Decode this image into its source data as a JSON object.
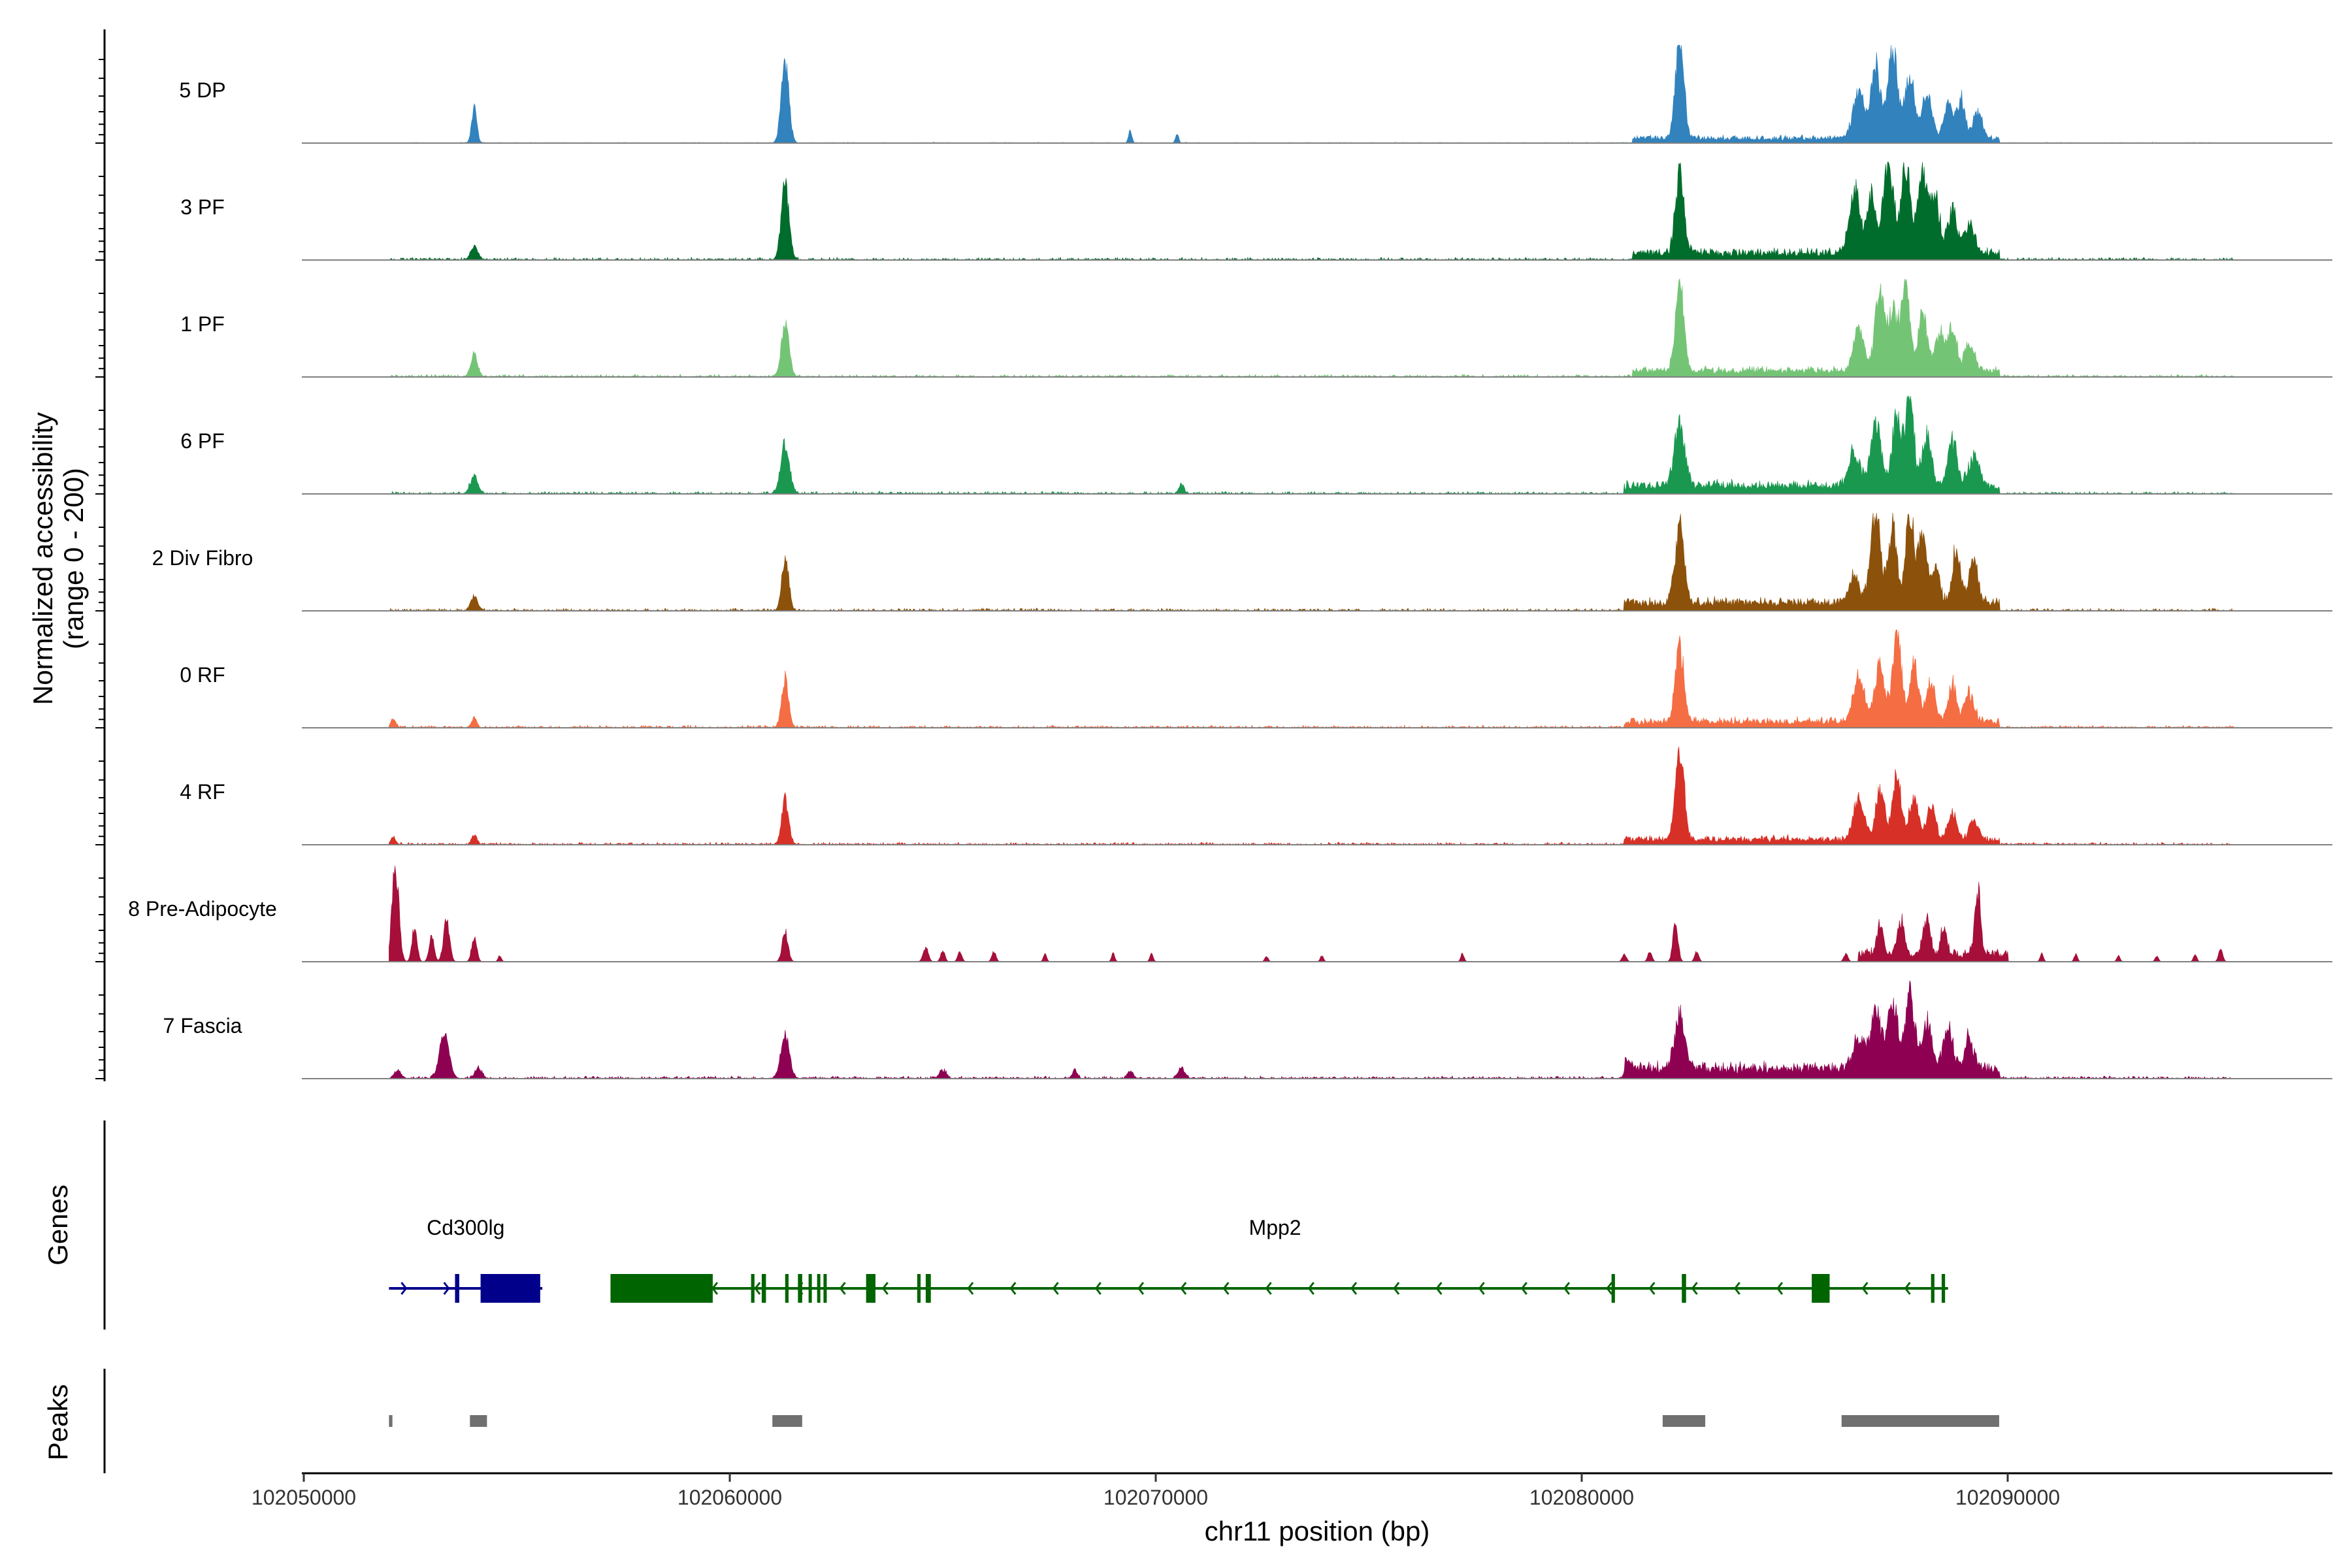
{
  "chart_data": {
    "type": "area",
    "title": "",
    "ylabel": "Normalized accessibility",
    "ylabel_range": "(range 0 - 200)",
    "xlabel": "chr11 position (bp)",
    "x_range": [
      102050000,
      102097800
    ],
    "x_ticks": [
      "102050000",
      "102060000",
      "102070000",
      "102080000",
      "102090000"
    ],
    "y_range": [
      0,
      200
    ],
    "genes_panel_label": "Genes",
    "peaks_panel_label": "Peaks",
    "tracks": [
      {
        "name": "5 DP",
        "color": "#3182BD",
        "noise": 0.01,
        "peaks": [
          [
            102054000,
            0.35,
            60
          ],
          [
            102061300,
            0.8,
            90
          ],
          [
            102069400,
            0.12,
            40
          ],
          [
            102070500,
            0.08,
            40
          ],
          [
            102082300,
            1.0,
            100
          ],
          [
            102086500,
            0.45,
            130
          ],
          [
            102086900,
            0.72,
            110
          ],
          [
            102087300,
            0.88,
            120
          ],
          [
            102087700,
            0.65,
            110
          ],
          [
            102088100,
            0.45,
            120
          ],
          [
            102088600,
            0.35,
            100
          ],
          [
            102088900,
            0.4,
            100
          ],
          [
            102089300,
            0.28,
            100
          ]
        ],
        "base": [
          [
            102081200,
            102089800,
            0.05
          ]
        ]
      },
      {
        "name": "3 PF",
        "color": "#006D2C",
        "noise": 0.03,
        "peaks": [
          [
            102054000,
            0.15,
            80
          ],
          [
            102061300,
            0.75,
            90
          ],
          [
            102082300,
            0.8,
            100
          ],
          [
            102086400,
            0.65,
            120
          ],
          [
            102086800,
            0.58,
            110
          ],
          [
            102087200,
            1.0,
            110
          ],
          [
            102087600,
            0.9,
            110
          ],
          [
            102088000,
            0.82,
            110
          ],
          [
            102088300,
            0.55,
            110
          ],
          [
            102088700,
            0.45,
            100
          ],
          [
            102089100,
            0.28,
            120
          ]
        ],
        "base": [
          [
            102081200,
            102089800,
            0.07
          ]
        ]
      },
      {
        "name": "1 PF",
        "color": "#74C476",
        "noise": 0.03,
        "peaks": [
          [
            102054000,
            0.22,
            80
          ],
          [
            102061300,
            0.55,
            90
          ],
          [
            102082300,
            0.9,
            100
          ],
          [
            102086500,
            0.45,
            120
          ],
          [
            102087000,
            0.82,
            110
          ],
          [
            102087300,
            0.6,
            100
          ],
          [
            102087600,
            1.0,
            100
          ],
          [
            102088000,
            0.55,
            110
          ],
          [
            102088400,
            0.38,
            100
          ],
          [
            102088700,
            0.45,
            100
          ],
          [
            102089100,
            0.28,
            110
          ]
        ],
        "base": [
          [
            102081200,
            102089800,
            0.06
          ]
        ]
      },
      {
        "name": "6 PF",
        "color": "#1A9850",
        "noise": 0.03,
        "peaks": [
          [
            102054000,
            0.18,
            90
          ],
          [
            102061300,
            0.5,
            100
          ],
          [
            102070600,
            0.1,
            60
          ],
          [
            102082300,
            0.65,
            120
          ],
          [
            102086400,
            0.35,
            130
          ],
          [
            102086900,
            0.65,
            120
          ],
          [
            102087400,
            0.7,
            110
          ],
          [
            102087700,
            1.0,
            90
          ],
          [
            102088100,
            0.5,
            110
          ],
          [
            102088700,
            0.45,
            110
          ],
          [
            102089200,
            0.3,
            120
          ]
        ],
        "base": [
          [
            102081000,
            102089800,
            0.08
          ]
        ]
      },
      {
        "name": "2 Div Fibro",
        "color": "#8C510A",
        "noise": 0.03,
        "peaks": [
          [
            102054000,
            0.15,
            80
          ],
          [
            102061300,
            0.55,
            80
          ],
          [
            102082300,
            0.78,
            110
          ],
          [
            102086400,
            0.28,
            120
          ],
          [
            102086900,
            1.0,
            110
          ],
          [
            102087300,
            0.75,
            100
          ],
          [
            102087700,
            0.9,
            100
          ],
          [
            102088000,
            0.68,
            100
          ],
          [
            102088300,
            0.35,
            100
          ],
          [
            102088800,
            0.55,
            100
          ],
          [
            102089200,
            0.42,
            100
          ]
        ],
        "base": [
          [
            102081000,
            102089800,
            0.08
          ]
        ]
      },
      {
        "name": "0 RF",
        "color": "#F46D43",
        "noise": 0.03,
        "peaks": [
          [
            102052100,
            0.08,
            60
          ],
          [
            102054000,
            0.1,
            60
          ],
          [
            102061300,
            0.5,
            80
          ],
          [
            102082300,
            0.75,
            100
          ],
          [
            102086500,
            0.45,
            130
          ],
          [
            102087000,
            0.6,
            110
          ],
          [
            102087400,
            0.9,
            100
          ],
          [
            102087800,
            0.55,
            110
          ],
          [
            102088200,
            0.4,
            100
          ],
          [
            102088700,
            0.38,
            100
          ],
          [
            102089100,
            0.3,
            110
          ]
        ],
        "base": [
          [
            102081000,
            102089800,
            0.06
          ]
        ]
      },
      {
        "name": "4 RF",
        "color": "#D73027",
        "noise": 0.03,
        "peaks": [
          [
            102052100,
            0.07,
            60
          ],
          [
            102054000,
            0.1,
            60
          ],
          [
            102061300,
            0.45,
            80
          ],
          [
            102082300,
            0.95,
            100
          ],
          [
            102086500,
            0.42,
            120
          ],
          [
            102087000,
            0.5,
            110
          ],
          [
            102087400,
            0.65,
            100
          ],
          [
            102087800,
            0.4,
            110
          ],
          [
            102088200,
            0.35,
            100
          ],
          [
            102088700,
            0.28,
            100
          ],
          [
            102089200,
            0.2,
            100
          ]
        ],
        "base": [
          [
            102081000,
            102089800,
            0.05
          ]
        ]
      },
      {
        "name": "8 Pre-Adipocyte",
        "color": "#A50F3A",
        "noise": 0.0,
        "peaks": [
          [
            102052150,
            1.0,
            80
          ],
          [
            102052600,
            0.35,
            60
          ],
          [
            102053000,
            0.25,
            60
          ],
          [
            102053350,
            0.45,
            70
          ],
          [
            102054000,
            0.25,
            60
          ],
          [
            102054600,
            0.06,
            40
          ],
          [
            102061300,
            0.3,
            70
          ],
          [
            102064600,
            0.15,
            60
          ],
          [
            102065000,
            0.12,
            50
          ],
          [
            102065400,
            0.1,
            50
          ],
          [
            102066200,
            0.1,
            50
          ],
          [
            102067400,
            0.08,
            40
          ],
          [
            102069000,
            0.08,
            40
          ],
          [
            102069900,
            0.08,
            40
          ],
          [
            102072600,
            0.06,
            40
          ],
          [
            102073900,
            0.06,
            40
          ],
          [
            102077200,
            0.08,
            40
          ],
          [
            102081000,
            0.08,
            50
          ],
          [
            102081600,
            0.1,
            50
          ],
          [
            102082200,
            0.4,
            60
          ],
          [
            102082700,
            0.1,
            50
          ],
          [
            102086200,
            0.08,
            50
          ],
          [
            102087000,
            0.3,
            80
          ],
          [
            102087500,
            0.35,
            80
          ],
          [
            102088100,
            0.35,
            80
          ],
          [
            102088500,
            0.3,
            70
          ],
          [
            102089300,
            0.65,
            70
          ],
          [
            102090800,
            0.08,
            40
          ],
          [
            102091600,
            0.08,
            40
          ],
          [
            102092600,
            0.06,
            40
          ],
          [
            102093500,
            0.06,
            40
          ],
          [
            102094400,
            0.08,
            40
          ],
          [
            102095000,
            0.12,
            50
          ]
        ],
        "base": [
          [
            102086500,
            102090000,
            0.08
          ]
        ]
      },
      {
        "name": "7 Fascia",
        "color": "#8E0152",
        "noise": 0.03,
        "peaks": [
          [
            102052200,
            0.08,
            80
          ],
          [
            102053300,
            0.45,
            110
          ],
          [
            102054100,
            0.1,
            80
          ],
          [
            102061300,
            0.45,
            100
          ],
          [
            102065000,
            0.08,
            80
          ],
          [
            102068100,
            0.08,
            60
          ],
          [
            102069400,
            0.08,
            60
          ],
          [
            102070600,
            0.1,
            80
          ],
          [
            102081100,
            0.08,
            80
          ],
          [
            102082300,
            0.55,
            120
          ],
          [
            102086500,
            0.3,
            140
          ],
          [
            102086900,
            0.55,
            130
          ],
          [
            102087300,
            0.62,
            120
          ],
          [
            102087700,
            0.78,
            110
          ],
          [
            102088100,
            0.45,
            120
          ],
          [
            102088600,
            0.4,
            110
          ],
          [
            102089100,
            0.3,
            110
          ]
        ],
        "base": [
          [
            102081000,
            102089800,
            0.1
          ]
        ]
      }
    ],
    "genes": [
      {
        "name": "Cd300lg",
        "strand": "+",
        "color": "#00008B",
        "start": 102052000,
        "end": 102055600,
        "label_pos": 102053800,
        "exons": [
          [
            102053550,
            102053650
          ],
          [
            102054150,
            102055550
          ]
        ]
      },
      {
        "name": "Mpp2",
        "strand": "-",
        "color": "#006400",
        "start": 102057200,
        "end": 102088600,
        "label_pos": 102072800,
        "exons": [
          [
            102057200,
            102059600
          ],
          [
            102060500,
            102060580
          ],
          [
            102060750,
            102060850
          ],
          [
            102061300,
            102061380
          ],
          [
            102061600,
            102061700
          ],
          [
            102061850,
            102061920
          ],
          [
            102062050,
            102062120
          ],
          [
            102062200,
            102062260
          ],
          [
            102063200,
            102063420
          ],
          [
            102064400,
            102064480
          ],
          [
            102064600,
            102064720
          ],
          [
            102080700,
            102080780
          ],
          [
            102082350,
            102082450
          ],
          [
            102085400,
            102085820
          ],
          [
            102088200,
            102088280
          ],
          [
            102088450,
            102088530
          ]
        ]
      }
    ],
    "peaks": [
      [
        102052000,
        102052080
      ],
      [
        102053900,
        102054300
      ],
      [
        102061000,
        102061700
      ],
      [
        102081900,
        102082900
      ],
      [
        102086100,
        102089800
      ]
    ]
  }
}
